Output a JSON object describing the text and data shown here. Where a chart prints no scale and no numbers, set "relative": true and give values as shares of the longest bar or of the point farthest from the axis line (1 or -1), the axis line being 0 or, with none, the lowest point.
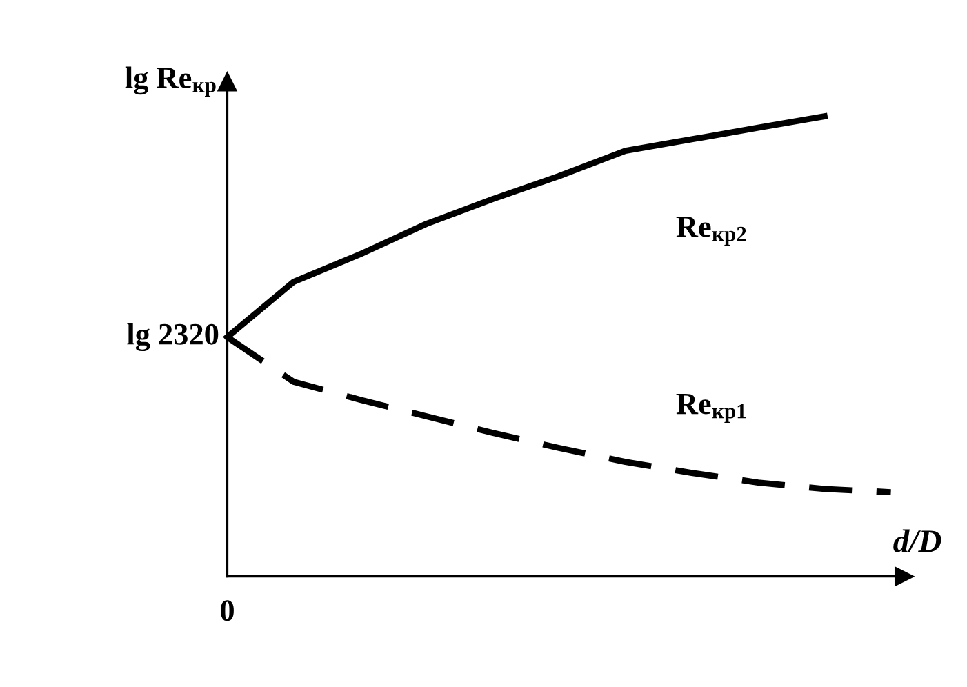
{
  "chart_data": {
    "type": "line",
    "relative": true,
    "xlabel": "d/D",
    "ylabel": "lg Re$_{кр}$",
    "categories": [
      null,
      null,
      null,
      null,
      null,
      null,
      null,
      null,
      null,
      null,
      null
    ],
    "series": [
      {
        "name": "Re$_{кр2}$",
        "color": "#000000",
        "line_style": "solid",
        "values": [
          0.52,
          0.64,
          0.7,
          0.766,
          0.82,
          0.87,
          0.925,
          0.95,
          0.975,
          1.0,
          null
        ]
      },
      {
        "name": "Re$_{кр1}$",
        "color": "#000000",
        "line_style": "dashed",
        "values": [
          0.52,
          0.423,
          0.384,
          0.348,
          0.312,
          0.279,
          0.249,
          0.225,
          0.204,
          0.19,
          0.183
        ]
      }
    ],
    "annotations": [
      "lg 2320",
      "0"
    ],
    "marker": "none",
    "legend": false
  }
}
